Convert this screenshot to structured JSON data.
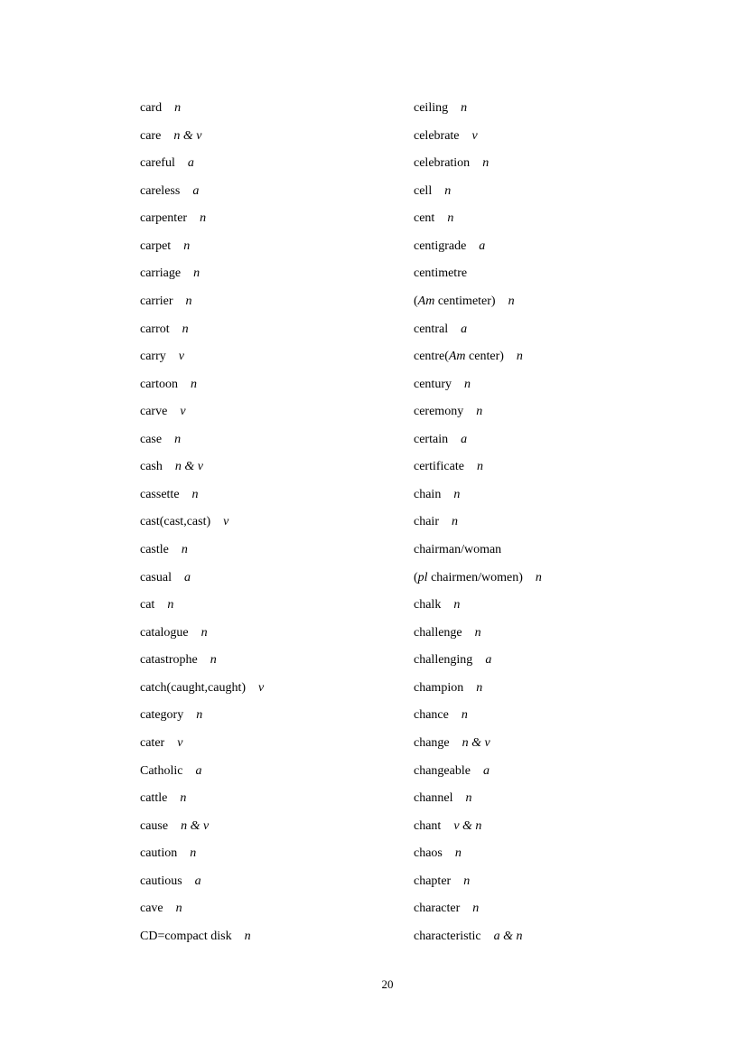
{
  "left_column": [
    {
      "parts": [
        {
          "t": "card"
        }
      ],
      "pos": "n"
    },
    {
      "parts": [
        {
          "t": "care"
        }
      ],
      "pos": "n & v"
    },
    {
      "parts": [
        {
          "t": "careful"
        }
      ],
      "pos": "a"
    },
    {
      "parts": [
        {
          "t": "careless"
        }
      ],
      "pos": "a"
    },
    {
      "parts": [
        {
          "t": "carpenter"
        }
      ],
      "pos": "n"
    },
    {
      "parts": [
        {
          "t": "carpet"
        }
      ],
      "pos": "n"
    },
    {
      "parts": [
        {
          "t": "carriage"
        }
      ],
      "pos": "n"
    },
    {
      "parts": [
        {
          "t": "carrier"
        }
      ],
      "pos": "n"
    },
    {
      "parts": [
        {
          "t": "carrot"
        }
      ],
      "pos": "n"
    },
    {
      "parts": [
        {
          "t": "carry"
        }
      ],
      "pos": "v"
    },
    {
      "parts": [
        {
          "t": "cartoon"
        }
      ],
      "pos": "n"
    },
    {
      "parts": [
        {
          "t": "carve"
        }
      ],
      "pos": "v"
    },
    {
      "parts": [
        {
          "t": "case"
        }
      ],
      "pos": "n"
    },
    {
      "parts": [
        {
          "t": "cash"
        }
      ],
      "pos": "n & v"
    },
    {
      "parts": [
        {
          "t": "cassette"
        }
      ],
      "pos": "n"
    },
    {
      "parts": [
        {
          "t": "cast(cast,cast)"
        }
      ],
      "pos": "v"
    },
    {
      "parts": [
        {
          "t": "castle"
        }
      ],
      "pos": "n"
    },
    {
      "parts": [
        {
          "t": "casual"
        }
      ],
      "pos": "a"
    },
    {
      "parts": [
        {
          "t": "cat"
        }
      ],
      "pos": "n"
    },
    {
      "parts": [
        {
          "t": "catalogue"
        }
      ],
      "pos": "n"
    },
    {
      "parts": [
        {
          "t": "catastrophe"
        }
      ],
      "pos": "n"
    },
    {
      "parts": [
        {
          "t": "catch(caught,caught)"
        }
      ],
      "pos": "v"
    },
    {
      "parts": [
        {
          "t": "category"
        }
      ],
      "pos": "n"
    },
    {
      "parts": [
        {
          "t": "cater"
        }
      ],
      "pos": "v"
    },
    {
      "parts": [
        {
          "t": "Catholic"
        }
      ],
      "pos": "a"
    },
    {
      "parts": [
        {
          "t": "cattle"
        }
      ],
      "pos": "n"
    },
    {
      "parts": [
        {
          "t": "cause"
        }
      ],
      "pos": "n & v"
    },
    {
      "parts": [
        {
          "t": "caution"
        }
      ],
      "pos": "n"
    },
    {
      "parts": [
        {
          "t": "cautious"
        }
      ],
      "pos": "a"
    },
    {
      "parts": [
        {
          "t": "cave"
        }
      ],
      "pos": "n"
    },
    {
      "parts": [
        {
          "t": "CD=compact disk"
        }
      ],
      "pos": "n"
    }
  ],
  "right_column": [
    {
      "parts": [
        {
          "t": "ceiling"
        }
      ],
      "pos": "n"
    },
    {
      "parts": [
        {
          "t": "celebrate"
        }
      ],
      "pos": "v"
    },
    {
      "parts": [
        {
          "t": "celebration"
        }
      ],
      "pos": "n"
    },
    {
      "parts": [
        {
          "t": "cell"
        }
      ],
      "pos": "n"
    },
    {
      "parts": [
        {
          "t": "cent"
        }
      ],
      "pos": "n"
    },
    {
      "parts": [
        {
          "t": "centigrade"
        }
      ],
      "pos": "a"
    },
    {
      "parts": [
        {
          "t": "centimetre"
        }
      ],
      "pos": ""
    },
    {
      "parts": [
        {
          "t": "("
        },
        {
          "t": "Am",
          "i": true
        },
        {
          "t": " centimeter)"
        }
      ],
      "pos": "n"
    },
    {
      "parts": [
        {
          "t": "central"
        }
      ],
      "pos": "a"
    },
    {
      "parts": [
        {
          "t": "centre("
        },
        {
          "t": "Am",
          "i": true
        },
        {
          "t": " center)"
        }
      ],
      "pos": "n"
    },
    {
      "parts": [
        {
          "t": "century"
        }
      ],
      "pos": "n"
    },
    {
      "parts": [
        {
          "t": "ceremony"
        }
      ],
      "pos": "n"
    },
    {
      "parts": [
        {
          "t": "certain"
        }
      ],
      "pos": "a"
    },
    {
      "parts": [
        {
          "t": "certificate"
        }
      ],
      "pos": "n"
    },
    {
      "parts": [
        {
          "t": "chain"
        }
      ],
      "pos": "n"
    },
    {
      "parts": [
        {
          "t": "chair"
        }
      ],
      "pos": "n"
    },
    {
      "parts": [
        {
          "t": "chairman/woman"
        }
      ],
      "pos": ""
    },
    {
      "parts": [
        {
          "t": "("
        },
        {
          "t": "pl",
          "i": true
        },
        {
          "t": " chairmen/women)"
        }
      ],
      "pos": "n"
    },
    {
      "parts": [
        {
          "t": "chalk"
        }
      ],
      "pos": "n"
    },
    {
      "parts": [
        {
          "t": "challenge"
        }
      ],
      "pos": "n"
    },
    {
      "parts": [
        {
          "t": "challenging"
        }
      ],
      "pos": "a"
    },
    {
      "parts": [
        {
          "t": "champion"
        }
      ],
      "pos": "n"
    },
    {
      "parts": [
        {
          "t": "chance"
        }
      ],
      "pos": "n"
    },
    {
      "parts": [
        {
          "t": "change"
        }
      ],
      "pos": "n & v"
    },
    {
      "parts": [
        {
          "t": "changeable"
        }
      ],
      "pos": "a"
    },
    {
      "parts": [
        {
          "t": "channel"
        }
      ],
      "pos": "n"
    },
    {
      "parts": [
        {
          "t": "chant"
        }
      ],
      "pos": "v & n"
    },
    {
      "parts": [
        {
          "t": "chaos"
        }
      ],
      "pos": "n"
    },
    {
      "parts": [
        {
          "t": "chapter"
        }
      ],
      "pos": "n"
    },
    {
      "parts": [
        {
          "t": "character"
        }
      ],
      "pos": "n"
    },
    {
      "parts": [
        {
          "t": "characteristic"
        }
      ],
      "pos": "a & n"
    }
  ],
  "page_number": "20"
}
